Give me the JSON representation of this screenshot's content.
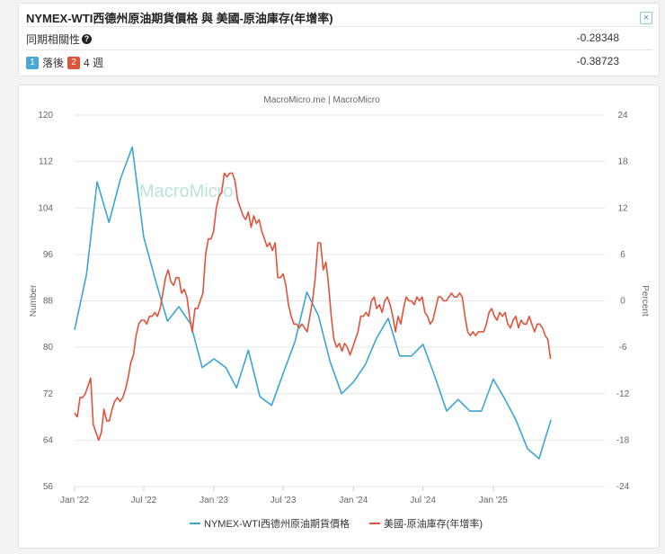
{
  "header": {
    "title": "NYMEX-WTI西德州原油期貨價格 與 美國-原油庫存(年增率)",
    "close_label": "×",
    "corr_label": "同期相關性",
    "corr_value": "-0.28348",
    "lag_badge1": "1",
    "lag_text1": "落後",
    "lag_badge2": "2",
    "lag_text2": "4 週",
    "lag_value": "-0.38723"
  },
  "chart_data": {
    "type": "line",
    "source": "MacroMicro.me | MacroMicro",
    "watermark": "MacroMicro",
    "ylabel_left": "Number",
    "ylabel_right": "Percent",
    "ylim_left": [
      56,
      120
    ],
    "ylim_right": [
      -24,
      24
    ],
    "yticks_left": [
      "120",
      "112",
      "104",
      "96",
      "88",
      "80",
      "72",
      "64",
      "56"
    ],
    "yticks_right": [
      "24",
      "18",
      "12",
      "6",
      "0",
      "-6",
      "-12",
      "-18",
      "-24"
    ],
    "xlim": [
      "2022-01-01",
      "2025-10-20"
    ],
    "xticks": [
      {
        "date": "2022-01-01",
        "label": "Jan '22"
      },
      {
        "date": "2022-07-01",
        "label": "Jul '22"
      },
      {
        "date": "2023-01-01",
        "label": "Jan '23"
      },
      {
        "date": "2023-07-01",
        "label": "Jul '23"
      },
      {
        "date": "2024-01-01",
        "label": "Jan '24"
      },
      {
        "date": "2024-07-01",
        "label": "Jul '24"
      },
      {
        "date": "2025-01-01",
        "label": "Jan '25"
      }
    ],
    "legend_position": "bottom",
    "series": [
      {
        "name": "NYMEX-WTI西德州原油期貨價格",
        "axis": "left",
        "color": "#3aa6d4",
        "points": [
          [
            "2022-01-01",
            83
          ],
          [
            "2022-02-01",
            92.5
          ],
          [
            "2022-03-01",
            108.5
          ],
          [
            "2022-04-01",
            101.5
          ],
          [
            "2022-05-01",
            109
          ],
          [
            "2022-06-01",
            114.5
          ],
          [
            "2022-07-01",
            99
          ],
          [
            "2022-08-01",
            91.5
          ],
          [
            "2022-09-01",
            84.5
          ],
          [
            "2022-10-01",
            87
          ],
          [
            "2022-11-01",
            84
          ],
          [
            "2022-12-01",
            76.5
          ],
          [
            "2023-01-01",
            78
          ],
          [
            "2023-02-01",
            76.5
          ],
          [
            "2023-03-01",
            73
          ],
          [
            "2023-04-01",
            79.5
          ],
          [
            "2023-05-01",
            71.5
          ],
          [
            "2023-06-01",
            70
          ],
          [
            "2023-07-01",
            75.5
          ],
          [
            "2023-08-01",
            81
          ],
          [
            "2023-09-01",
            89.5
          ],
          [
            "2023-10-01",
            85.5
          ],
          [
            "2023-11-01",
            77.5
          ],
          [
            "2023-12-01",
            72
          ],
          [
            "2024-01-01",
            74
          ],
          [
            "2024-02-01",
            77
          ],
          [
            "2024-03-01",
            81.5
          ],
          [
            "2024-04-01",
            85
          ],
          [
            "2024-05-01",
            78.5
          ],
          [
            "2024-06-01",
            78.5
          ],
          [
            "2024-07-01",
            80.5
          ],
          [
            "2024-08-01",
            75
          ],
          [
            "2024-09-01",
            69
          ],
          [
            "2024-10-01",
            71
          ],
          [
            "2024-11-01",
            69
          ],
          [
            "2024-12-01",
            69
          ],
          [
            "2025-01-01",
            74.5
          ],
          [
            "2025-02-01",
            71
          ],
          [
            "2025-03-01",
            67.5
          ],
          [
            "2025-04-01",
            62.5
          ],
          [
            "2025-05-01",
            60.8
          ],
          [
            "2025-06-01",
            67.5
          ]
        ]
      },
      {
        "name": "美國-原油庫存(年增率)",
        "axis": "right",
        "color": "#e0533b",
        "points": [
          [
            "2022-01-01",
            -14.5
          ],
          [
            "2022-01-08",
            -15
          ],
          [
            "2022-01-15",
            -12.5
          ],
          [
            "2022-01-22",
            -12.5
          ],
          [
            "2022-01-29",
            -12
          ],
          [
            "2022-02-05",
            -11
          ],
          [
            "2022-02-12",
            -10
          ],
          [
            "2022-02-19",
            -16
          ],
          [
            "2022-02-26",
            -17
          ],
          [
            "2022-03-05",
            -18
          ],
          [
            "2022-03-12",
            -17
          ],
          [
            "2022-03-19",
            -14
          ],
          [
            "2022-03-26",
            -15.5
          ],
          [
            "2022-04-02",
            -15.5
          ],
          [
            "2022-04-09",
            -14
          ],
          [
            "2022-04-16",
            -13
          ],
          [
            "2022-04-23",
            -12.5
          ],
          [
            "2022-04-30",
            -13
          ],
          [
            "2022-05-07",
            -12.5
          ],
          [
            "2022-05-14",
            -11.5
          ],
          [
            "2022-05-21",
            -10
          ],
          [
            "2022-05-28",
            -8
          ],
          [
            "2022-06-04",
            -7
          ],
          [
            "2022-06-11",
            -4.5
          ],
          [
            "2022-06-18",
            -3
          ],
          [
            "2022-06-25",
            -2.5
          ],
          [
            "2022-07-02",
            -2.5
          ],
          [
            "2022-07-09",
            -3
          ],
          [
            "2022-07-16",
            -2
          ],
          [
            "2022-07-23",
            -2
          ],
          [
            "2022-07-30",
            -1.5
          ],
          [
            "2022-08-06",
            -2
          ],
          [
            "2022-08-13",
            -1
          ],
          [
            "2022-08-20",
            1
          ],
          [
            "2022-08-27",
            3
          ],
          [
            "2022-09-03",
            4
          ],
          [
            "2022-09-10",
            2.5
          ],
          [
            "2022-09-17",
            2
          ],
          [
            "2022-09-24",
            3
          ],
          [
            "2022-10-01",
            3
          ],
          [
            "2022-10-08",
            1
          ],
          [
            "2022-10-15",
            1.5
          ],
          [
            "2022-10-22",
            0.5
          ],
          [
            "2022-10-29",
            -2
          ],
          [
            "2022-11-05",
            -4
          ],
          [
            "2022-11-12",
            -1
          ],
          [
            "2022-11-19",
            -1
          ],
          [
            "2022-11-26",
            0
          ],
          [
            "2022-12-03",
            1
          ],
          [
            "2022-12-10",
            6
          ],
          [
            "2022-12-17",
            8
          ],
          [
            "2022-12-24",
            8
          ],
          [
            "2022-12-31",
            9
          ],
          [
            "2023-01-07",
            12
          ],
          [
            "2023-01-14",
            13.5
          ],
          [
            "2023-01-21",
            14
          ],
          [
            "2023-01-28",
            16.5
          ],
          [
            "2023-02-04",
            16
          ],
          [
            "2023-02-11",
            16.5
          ],
          [
            "2023-02-18",
            16.5
          ],
          [
            "2023-02-25",
            15.5
          ],
          [
            "2023-03-04",
            13
          ],
          [
            "2023-03-11",
            12
          ],
          [
            "2023-03-18",
            11
          ],
          [
            "2023-03-25",
            10.5
          ],
          [
            "2023-04-01",
            11.5
          ],
          [
            "2023-04-08",
            9.5
          ],
          [
            "2023-04-15",
            11
          ],
          [
            "2023-04-22",
            10
          ],
          [
            "2023-04-29",
            10.5
          ],
          [
            "2023-05-06",
            9
          ],
          [
            "2023-05-13",
            8
          ],
          [
            "2023-05-20",
            7
          ],
          [
            "2023-05-27",
            7.5
          ],
          [
            "2023-06-03",
            6.5
          ],
          [
            "2023-06-10",
            7.5
          ],
          [
            "2023-06-17",
            3
          ],
          [
            "2023-06-24",
            3
          ],
          [
            "2023-07-01",
            3.5
          ],
          [
            "2023-07-08",
            2
          ],
          [
            "2023-07-15",
            -0.5
          ],
          [
            "2023-07-22",
            -2
          ],
          [
            "2023-07-29",
            -3
          ],
          [
            "2023-08-05",
            -3
          ],
          [
            "2023-08-12",
            -3.5
          ],
          [
            "2023-08-19",
            -3
          ],
          [
            "2023-08-26",
            -3.5
          ],
          [
            "2023-09-02",
            -4
          ],
          [
            "2023-09-09",
            -2
          ],
          [
            "2023-09-16",
            0
          ],
          [
            "2023-09-23",
            3
          ],
          [
            "2023-09-30",
            7.5
          ],
          [
            "2023-10-07",
            7.5
          ],
          [
            "2023-10-14",
            4
          ],
          [
            "2023-10-21",
            5
          ],
          [
            "2023-10-28",
            2
          ],
          [
            "2023-11-04",
            -2
          ],
          [
            "2023-11-11",
            -5
          ],
          [
            "2023-11-18",
            -6
          ],
          [
            "2023-11-25",
            -5.5
          ],
          [
            "2023-12-02",
            -6.5
          ],
          [
            "2023-12-09",
            -5.5
          ],
          [
            "2023-12-16",
            -6
          ],
          [
            "2023-12-23",
            -7
          ],
          [
            "2023-12-30",
            -6
          ],
          [
            "2024-01-06",
            -5
          ],
          [
            "2024-01-13",
            -4
          ],
          [
            "2024-01-20",
            -2
          ],
          [
            "2024-01-27",
            -2
          ],
          [
            "2024-02-03",
            -1.5
          ],
          [
            "2024-02-10",
            -2
          ],
          [
            "2024-02-17",
            0
          ],
          [
            "2024-02-24",
            0.5
          ],
          [
            "2024-03-02",
            -1
          ],
          [
            "2024-03-09",
            -0.5
          ],
          [
            "2024-03-16",
            -1.5
          ],
          [
            "2024-03-23",
            0
          ],
          [
            "2024-03-30",
            0.5
          ],
          [
            "2024-04-06",
            -0.5
          ],
          [
            "2024-04-13",
            -2
          ],
          [
            "2024-04-20",
            -4
          ],
          [
            "2024-04-27",
            -2
          ],
          [
            "2024-05-04",
            -3
          ],
          [
            "2024-05-11",
            -1
          ],
          [
            "2024-05-18",
            0.5
          ],
          [
            "2024-05-25",
            0
          ],
          [
            "2024-06-01",
            0
          ],
          [
            "2024-06-08",
            -0.5
          ],
          [
            "2024-06-15",
            0.5
          ],
          [
            "2024-06-22",
            0
          ],
          [
            "2024-06-29",
            0.5
          ],
          [
            "2024-07-06",
            -1.5
          ],
          [
            "2024-07-13",
            -2
          ],
          [
            "2024-07-20",
            -3
          ],
          [
            "2024-07-27",
            -2.5
          ],
          [
            "2024-08-03",
            -1
          ],
          [
            "2024-08-10",
            0.5
          ],
          [
            "2024-08-17",
            0.5
          ],
          [
            "2024-08-24",
            0
          ],
          [
            "2024-08-31",
            0
          ],
          [
            "2024-09-07",
            0.5
          ],
          [
            "2024-09-14",
            1
          ],
          [
            "2024-09-21",
            0.5
          ],
          [
            "2024-09-28",
            0.5
          ],
          [
            "2024-10-05",
            1
          ],
          [
            "2024-10-12",
            0.5
          ],
          [
            "2024-10-19",
            -2
          ],
          [
            "2024-10-26",
            -4
          ],
          [
            "2024-11-02",
            -4.5
          ],
          [
            "2024-11-09",
            -4
          ],
          [
            "2024-11-16",
            -4.5
          ],
          [
            "2024-11-23",
            -4
          ],
          [
            "2024-11-30",
            -4
          ],
          [
            "2024-12-07",
            -4
          ],
          [
            "2024-12-14",
            -3
          ],
          [
            "2024-12-21",
            -1.5
          ],
          [
            "2024-12-28",
            -1
          ],
          [
            "2025-01-04",
            -2
          ],
          [
            "2025-01-11",
            -2.5
          ],
          [
            "2025-01-18",
            -1.5
          ],
          [
            "2025-01-25",
            -2
          ],
          [
            "2025-02-01",
            -1.5
          ],
          [
            "2025-02-08",
            -3
          ],
          [
            "2025-02-15",
            -3.5
          ],
          [
            "2025-02-22",
            -2.5
          ],
          [
            "2025-03-01",
            -2
          ],
          [
            "2025-03-08",
            -3.5
          ],
          [
            "2025-03-15",
            -2.5
          ],
          [
            "2025-03-22",
            -3
          ],
          [
            "2025-03-29",
            -3
          ],
          [
            "2025-04-05",
            -2
          ],
          [
            "2025-04-12",
            -3
          ],
          [
            "2025-04-19",
            -4
          ],
          [
            "2025-04-26",
            -3
          ],
          [
            "2025-05-03",
            -3
          ],
          [
            "2025-05-10",
            -3.5
          ],
          [
            "2025-05-17",
            -4.5
          ],
          [
            "2025-05-24",
            -5
          ],
          [
            "2025-05-31",
            -7.5
          ]
        ]
      }
    ]
  }
}
